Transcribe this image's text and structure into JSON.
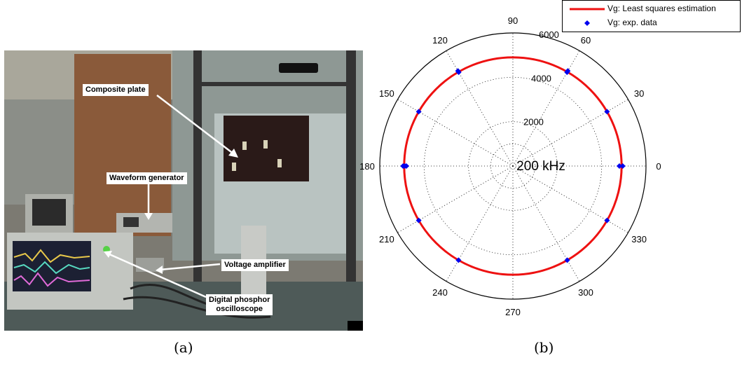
{
  "figure_a": {
    "annotations": {
      "composite_plate": "Composite plate",
      "waveform_generator": "Waveform generator",
      "voltage_amplifier": "Voltage amplifier",
      "oscilloscope_line1": "Digital phosphor",
      "oscilloscope_line2": "oscilloscope"
    },
    "caption": "(a)"
  },
  "figure_b": {
    "caption": "(b)",
    "center_label": "200 kHz",
    "legend": {
      "line_label": "Vg: Least squares estimation",
      "marker_label": "Vg: exp. data",
      "line_color": "#ee1111",
      "marker_color": "#0000ee"
    },
    "chart_data": {
      "type": "scatter",
      "projection": "polar",
      "rlim": [
        0,
        6000
      ],
      "radial_ticks": [
        "2000",
        "4000",
        "6000"
      ],
      "angle_ticks": [
        "0",
        "30",
        "60",
        "90",
        "120",
        "150",
        "180",
        "210",
        "240",
        "270",
        "300",
        "330"
      ],
      "grid": true,
      "legend_position": "top-right",
      "series": [
        {
          "name": "Vg: Least squares estimation",
          "kind": "line",
          "r_constant": 4900
        },
        {
          "name": "Vg: exp. data",
          "kind": "markers",
          "points": [
            {
              "theta": 0,
              "r": 4950
            },
            {
              "theta": 0,
              "r": 4800
            },
            {
              "theta": 30,
              "r": 4900
            },
            {
              "theta": 60,
              "r": 4950
            },
            {
              "theta": 60,
              "r": 4880
            },
            {
              "theta": 120,
              "r": 4950
            },
            {
              "theta": 120,
              "r": 4880
            },
            {
              "theta": 150,
              "r": 4900
            },
            {
              "theta": 180,
              "r": 4950
            },
            {
              "theta": 180,
              "r": 4800
            },
            {
              "theta": 180,
              "r": 4870
            },
            {
              "theta": 210,
              "r": 4900
            },
            {
              "theta": 240,
              "r": 4900
            },
            {
              "theta": 300,
              "r": 4900
            },
            {
              "theta": 330,
              "r": 4900
            }
          ]
        }
      ]
    }
  }
}
